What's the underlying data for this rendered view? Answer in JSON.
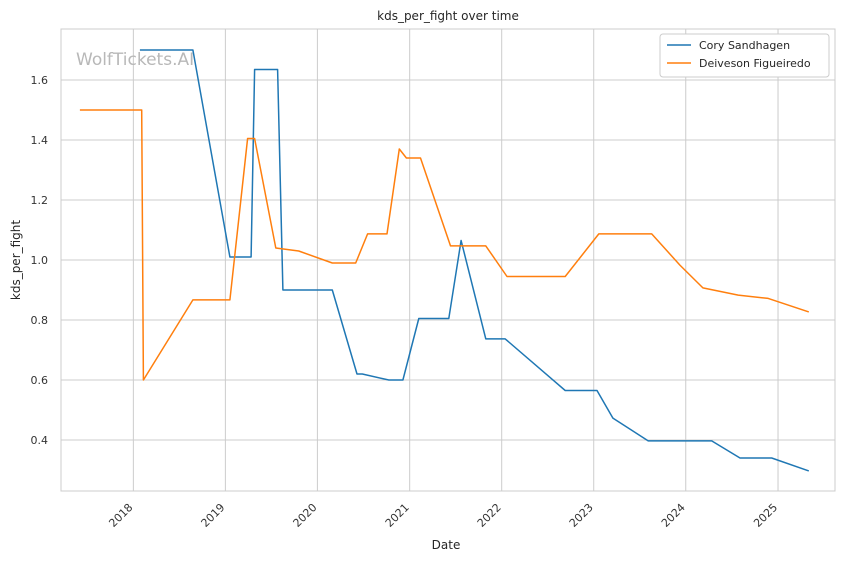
{
  "chart_data": {
    "type": "line",
    "title": "kds_per_fight over time",
    "xlabel": "Date",
    "ylabel": "kds_per_fight",
    "watermark": "WolfTickets.AI",
    "x_ticks": [
      "2018",
      "2019",
      "2020",
      "2021",
      "2022",
      "2023",
      "2024",
      "2025"
    ],
    "y_ticks": [
      "0.4",
      "0.6",
      "0.8",
      "1.0",
      "1.2",
      "1.4",
      "1.6"
    ],
    "xlim": [
      "2017-03-20",
      "2025-08-15"
    ],
    "ylim": [
      0.23,
      1.77
    ],
    "grid": true,
    "legend_position": "top-right",
    "series": [
      {
        "name": "Cory Sandhagen",
        "color": "#1f77b4",
        "points": [
          [
            "2018-01-27",
            1.7
          ],
          [
            "2018-08-25",
            1.7
          ],
          [
            "2019-01-19",
            1.01
          ],
          [
            "2019-04-13",
            1.01
          ],
          [
            "2019-04-27",
            1.635
          ],
          [
            "2019-07-27",
            1.635
          ],
          [
            "2019-08-17",
            0.9
          ],
          [
            "2020-02-29",
            0.9
          ],
          [
            "2020-06-06",
            0.62
          ],
          [
            "2020-06-27",
            0.62
          ],
          [
            "2020-10-10",
            0.6
          ],
          [
            "2020-12-05",
            0.6
          ],
          [
            "2021-02-06",
            0.805
          ],
          [
            "2021-06-05",
            0.805
          ],
          [
            "2021-07-24",
            1.065
          ],
          [
            "2021-10-30",
            0.737
          ],
          [
            "2022-01-15",
            0.737
          ],
          [
            "2022-09-10",
            0.565
          ],
          [
            "2023-01-14",
            0.565
          ],
          [
            "2023-03-18",
            0.473
          ],
          [
            "2023-08-05",
            0.397
          ],
          [
            "2024-04-13",
            0.397
          ],
          [
            "2024-08-03",
            0.34
          ],
          [
            "2024-12-07",
            0.34
          ],
          [
            "2025-05-03",
            0.297
          ]
        ]
      },
      {
        "name": "Deiveson Figueiredo",
        "color": "#ff7f0e",
        "points": [
          [
            "2017-06-03",
            1.5
          ],
          [
            "2018-02-03",
            1.5
          ],
          [
            "2018-02-10",
            0.6
          ],
          [
            "2018-08-25",
            0.867
          ],
          [
            "2019-01-19",
            0.867
          ],
          [
            "2019-03-30",
            1.405
          ],
          [
            "2019-04-27",
            1.405
          ],
          [
            "2019-07-20",
            1.04
          ],
          [
            "2019-10-19",
            1.03
          ],
          [
            "2020-02-29",
            0.99
          ],
          [
            "2020-06-01",
            0.99
          ],
          [
            "2020-07-18",
            1.087
          ],
          [
            "2020-10-03",
            1.087
          ],
          [
            "2020-11-21",
            1.37
          ],
          [
            "2020-12-19",
            1.34
          ],
          [
            "2021-02-13",
            1.34
          ],
          [
            "2021-06-12",
            1.047
          ],
          [
            "2021-10-30",
            1.047
          ],
          [
            "2022-01-22",
            0.945
          ],
          [
            "2022-09-10",
            0.945
          ],
          [
            "2023-01-21",
            1.087
          ],
          [
            "2023-08-19",
            1.087
          ],
          [
            "2023-12-09",
            0.983
          ],
          [
            "2024-03-09",
            0.907
          ],
          [
            "2024-07-27",
            0.883
          ],
          [
            "2024-11-23",
            0.872
          ],
          [
            "2025-05-03",
            0.827
          ]
        ]
      }
    ]
  }
}
